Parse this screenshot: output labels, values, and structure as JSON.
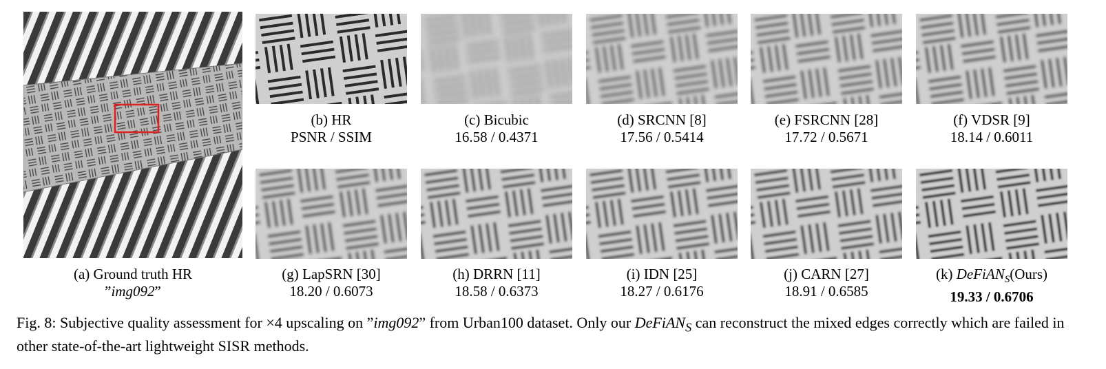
{
  "panels": [
    {
      "id": "a",
      "label": "(a) Ground truth HR",
      "sub_prefix": "”",
      "sub_italic": "img092",
      "sub_suffix": "”",
      "blur": 0
    },
    {
      "id": "b",
      "label": "(b) HR",
      "sub": "PSNR / SSIM",
      "blur": 0,
      "sharp": true
    },
    {
      "id": "c",
      "label": "(c) Bicubic",
      "sub": "16.58 / 0.4371",
      "blur": 4.2
    },
    {
      "id": "d",
      "label": "(d) SRCNN [8]",
      "sub": "17.56 / 0.5414",
      "blur": 2.6
    },
    {
      "id": "e",
      "label": "(e) FSRCNN [28]",
      "sub": "17.72 / 0.5671",
      "blur": 2.4
    },
    {
      "id": "f",
      "label": "(f) VDSR [9]",
      "sub": "18.14 / 0.6011",
      "blur": 2.2
    },
    {
      "id": "g",
      "label": "(g) LapSRN [30]",
      "sub": "18.20 / 0.6073",
      "blur": 2.0
    },
    {
      "id": "h",
      "label": "(h) DRRN [11]",
      "sub": "18.58 / 0.6373",
      "blur": 1.8
    },
    {
      "id": "i",
      "label": "(i) IDN [25]",
      "sub": "18.27 / 0.6176",
      "blur": 1.9
    },
    {
      "id": "j",
      "label": "(j) CARN [27]",
      "sub": "18.91 / 0.6585",
      "blur": 1.7
    },
    {
      "id": "k",
      "label_prefix": "(k) ",
      "label_italic": "DeFiAN",
      "label_subscript": "S",
      "label_suffix": "(Ours)",
      "sub": "19.33 / 0.6706",
      "sub_bold": true,
      "blur": 1.3
    }
  ],
  "figure_caption": {
    "part1": "Fig. 8: Subjective quality assessment for ×4 upscaling on ”",
    "italic1": "img092",
    "part2": "” from Urban100 dataset. Only our ",
    "italic2": "DeFiAN",
    "subscript2": "S",
    "part3": " can reconstruct the mixed edges correctly which are failed in other state-of-the-art lightweight SISR methods."
  },
  "colors": {
    "highlight_box": "#e0201c"
  }
}
